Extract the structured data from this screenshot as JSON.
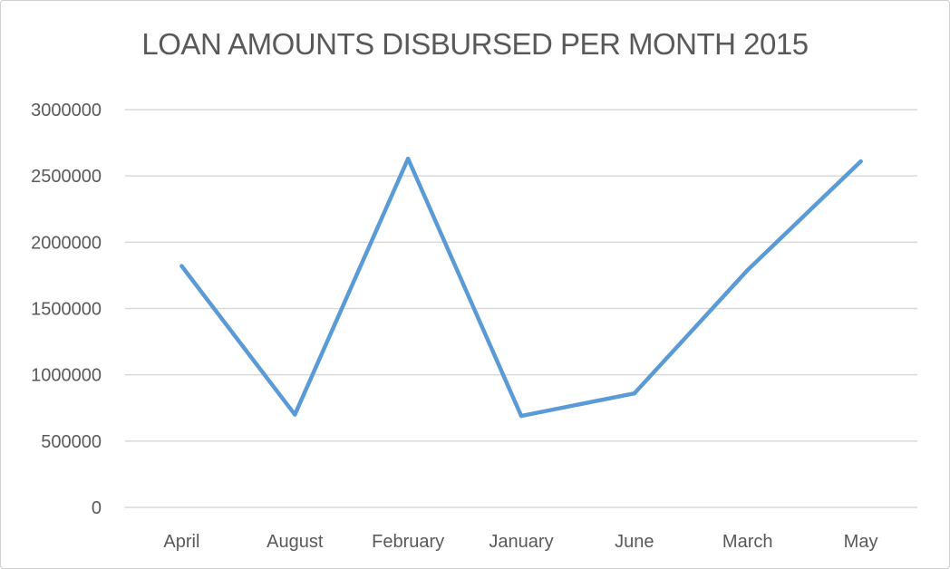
{
  "chart_data": {
    "type": "line",
    "title": "LOAN AMOUNTS DISBURSED PER MONTH 2015",
    "xlabel": "",
    "ylabel": "",
    "categories": [
      "April",
      "August",
      "February",
      "January",
      "June",
      "March",
      "May"
    ],
    "series": [
      {
        "values": [
          1820000,
          700000,
          2630000,
          690000,
          860000,
          1790000,
          2610000
        ],
        "color": "#5b9bd5"
      }
    ],
    "ylim": [
      0,
      3000000
    ],
    "yticks": [
      "0",
      "500000",
      "1000000",
      "1500000",
      "2000000",
      "2500000",
      "3000000"
    ],
    "grid": true,
    "legend": "none"
  }
}
